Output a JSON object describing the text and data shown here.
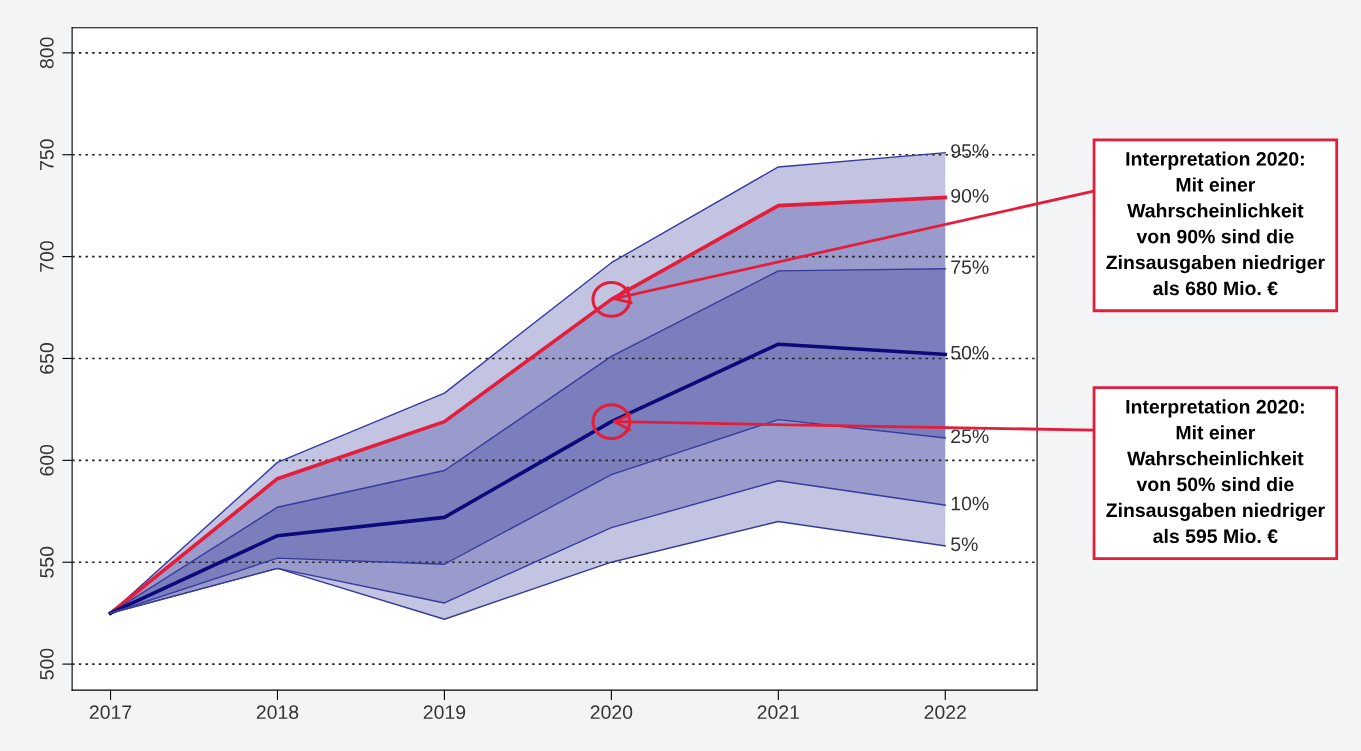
{
  "chart_data": {
    "type": "line",
    "x": [
      2017,
      2018,
      2019,
      2020,
      2021,
      2022
    ],
    "series": [
      {
        "name": "95%",
        "color": "#373c9c",
        "values": [
          525,
          599,
          633,
          697,
          744,
          751
        ]
      },
      {
        "name": "90%",
        "color": "#e41e3a",
        "values": [
          525,
          591,
          619,
          679,
          725,
          729
        ]
      },
      {
        "name": "75%",
        "color": "#373c9c",
        "values": [
          525,
          577,
          595,
          651,
          693,
          694
        ]
      },
      {
        "name": "50%",
        "color": "#0a0a78",
        "values": [
          525,
          563,
          572,
          619,
          657,
          652
        ]
      },
      {
        "name": "25%",
        "color": "#373c9c",
        "values": [
          525,
          552,
          549,
          593,
          620,
          611
        ],
        "lower": [
          525,
          552,
          549,
          593,
          620,
          611
        ],
        "upper": [
          525,
          577,
          595,
          651,
          693,
          694
        ]
      },
      {
        "name": "10%",
        "color": "#373c9c",
        "values": [
          525,
          547,
          530,
          567,
          590,
          578
        ],
        "lower": [
          525,
          547,
          530,
          567,
          590,
          578
        ],
        "upper": [
          525,
          591,
          619,
          679,
          725,
          729
        ]
      },
      {
        "name": "5%",
        "color": "#373c9c",
        "values": [
          525,
          547,
          522,
          550,
          570,
          558
        ],
        "lower": [
          525,
          547,
          522,
          550,
          570,
          558
        ],
        "upper": [
          525,
          599,
          633,
          697,
          744,
          751
        ]
      }
    ],
    "xlim": [
      2016.77,
      2022.55
    ],
    "xticks": [
      2017,
      2018,
      2019,
      2020,
      2021,
      2022
    ],
    "ylim": [
      487.2,
      812.3
    ],
    "yticks": [
      500,
      550,
      600,
      650,
      700,
      750,
      800
    ],
    "grid": "y",
    "marker": "none",
    "line_style": "solid",
    "annotations": [
      {
        "text": "Interpretation 2020:\nMit einer\nWahrscheinlichkeit\nvon 90% sind die\nZinsausgaben niedriger\nals 680 Mio. €",
        "x": 2020,
        "y": 679
      },
      {
        "text": "Interpretation 2020:\nMit einer\nWahrscheinlichkeit\nvon 50% sind die\nZinsausgaben niedriger\nals 595 Mio. €",
        "x": 2020,
        "y": 619
      }
    ]
  }
}
